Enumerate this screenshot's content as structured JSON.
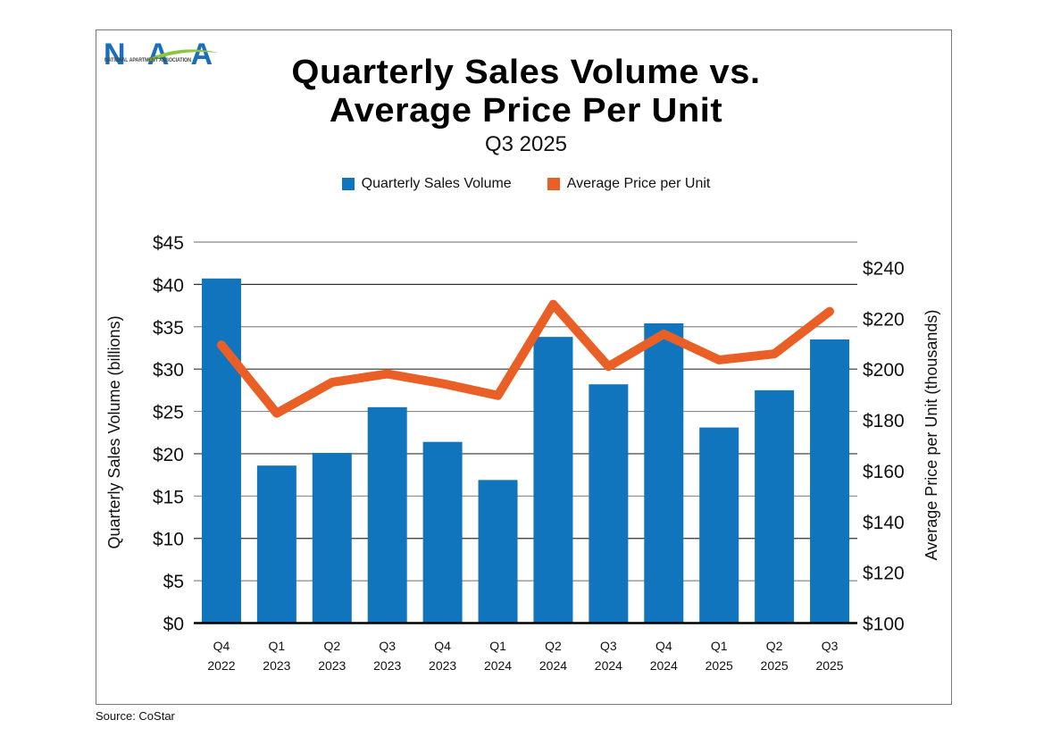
{
  "logo": {
    "text": "NAA",
    "subtext": "NATIONAL APARTMENT ASSOCIATION",
    "colors": {
      "blue": "#1a6fb8",
      "green": "#8cc63f"
    }
  },
  "source": "Source: CoStar",
  "chart_data": {
    "type": "bar+line",
    "title_line1": "Quarterly Sales Volume vs.",
    "title_line2": "Average Price Per Unit",
    "subtitle": "Q3 2025",
    "categories": [
      [
        "Q4",
        "2022"
      ],
      [
        "Q1",
        "2023"
      ],
      [
        "Q2",
        "2023"
      ],
      [
        "Q3",
        "2023"
      ],
      [
        "Q4",
        "2023"
      ],
      [
        "Q1",
        "2024"
      ],
      [
        "Q2",
        "2024"
      ],
      [
        "Q3",
        "2024"
      ],
      [
        "Q4",
        "2024"
      ],
      [
        "Q1",
        "2025"
      ],
      [
        "Q2",
        "2025"
      ],
      [
        "Q3",
        "2025"
      ]
    ],
    "series": [
      {
        "name": "Quarterly Sales Volume",
        "type": "bar",
        "axis": "left",
        "color": "#1175bd",
        "values": [
          40.7,
          18.6,
          20.1,
          25.5,
          21.4,
          16.9,
          33.8,
          28.2,
          35.4,
          23.1,
          27.5,
          33.5
        ]
      },
      {
        "name": "Average Price per Unit",
        "type": "line",
        "axis": "right",
        "color": "#e95f26",
        "values": [
          209.5,
          182.6,
          194.8,
          198.1,
          194.3,
          189.6,
          225.5,
          201.0,
          213.8,
          203.6,
          206.0,
          222.7
        ]
      }
    ],
    "left_axis": {
      "label": "Quarterly Sales Volume (billions)",
      "range": [
        0,
        45
      ],
      "ticks": [
        0,
        5,
        10,
        15,
        20,
        25,
        30,
        35,
        40,
        45
      ],
      "tick_labels": [
        "$0",
        "$5",
        "$10",
        "$15",
        "$20",
        "$25",
        "$30",
        "$35",
        "$40",
        "$45"
      ]
    },
    "right_axis": {
      "label": "Average Price per Unit (thousands)",
      "range": [
        100,
        250
      ],
      "ticks": [
        100,
        120,
        140,
        160,
        180,
        200,
        220,
        240
      ],
      "tick_labels": [
        "$100",
        "$120",
        "$140",
        "$160",
        "$180",
        "$200",
        "$220",
        "$240"
      ]
    },
    "grid": true,
    "legend": "top-center"
  }
}
